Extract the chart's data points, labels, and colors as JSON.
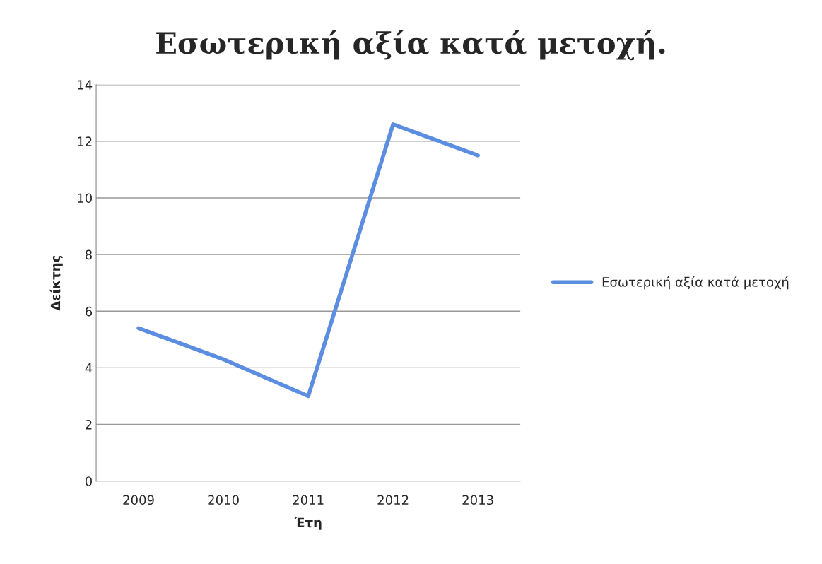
{
  "chart_data": {
    "type": "line",
    "title": "Εσωτερική αξία κατά μετοχή.",
    "xlabel": "Έτη",
    "ylabel": "Δείκτης",
    "categories": [
      "2009",
      "2010",
      "2011",
      "2012",
      "2013"
    ],
    "series": [
      {
        "name": "Εσωτερική αξία κατά μετοχή",
        "color": "#5b8de0",
        "values": [
          5.4,
          4.3,
          3.0,
          12.6,
          11.5
        ]
      }
    ],
    "ylim": [
      0,
      14
    ],
    "yticks": [
      0,
      2,
      4,
      6,
      8,
      10,
      12,
      14
    ],
    "grid": "y",
    "legend": "right",
    "marker": "none",
    "line_style": "solid"
  }
}
